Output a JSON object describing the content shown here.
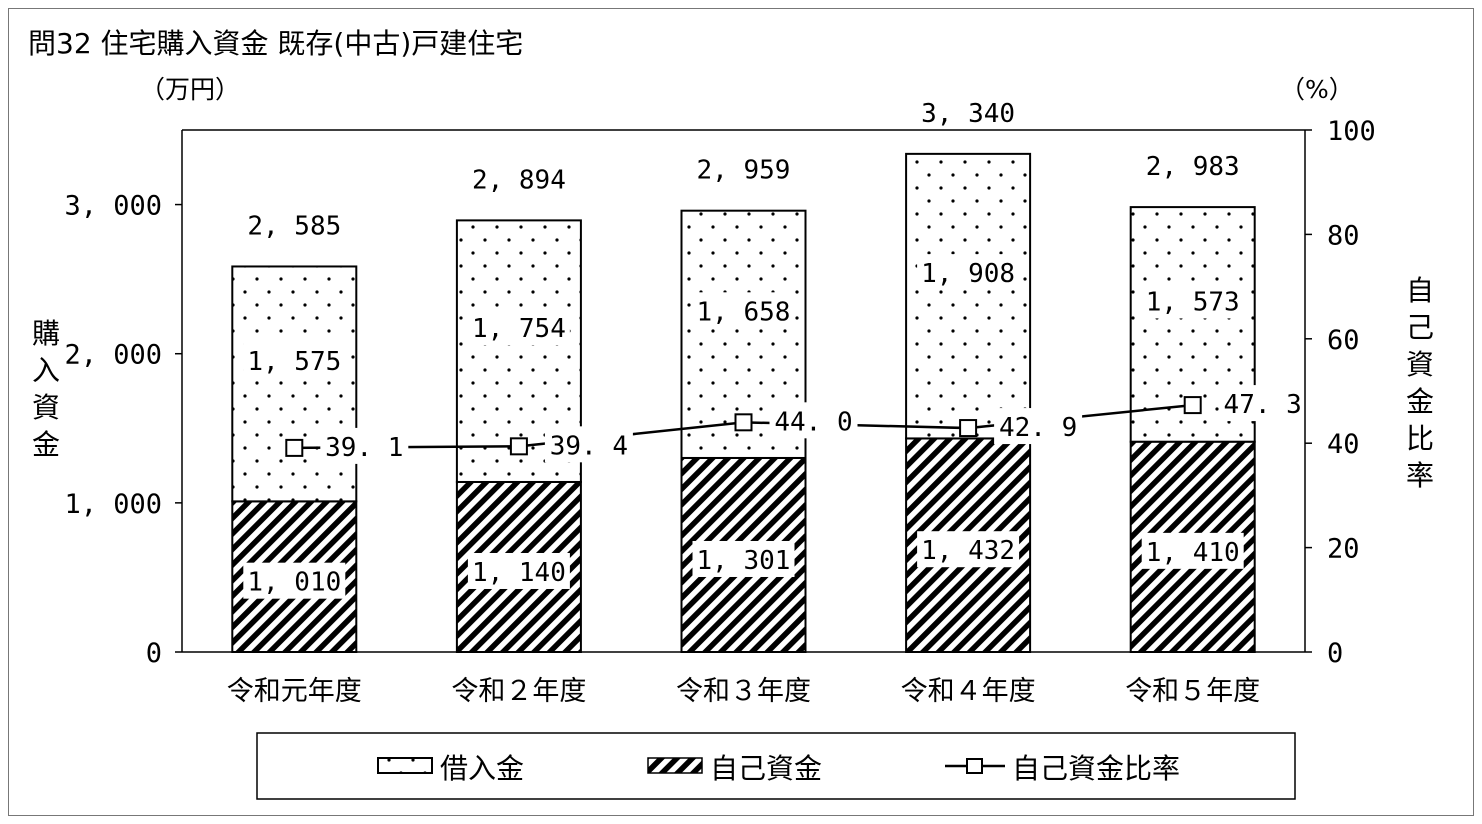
{
  "chart_data": {
    "type": "bar",
    "title": "問32 住宅購入資金 既存(中古)戸建住宅",
    "left_unit": "（万円）",
    "right_unit": "（%）",
    "left_axis_title": "購入資金",
    "right_axis_title": "自己資金比率",
    "categories": [
      "令和元年度",
      "令和２年度",
      "令和３年度",
      "令和４年度",
      "令和５年度"
    ],
    "series": [
      {
        "name": "借入金",
        "values": [
          1575,
          1754,
          1658,
          1908,
          1573
        ],
        "style": "dotted",
        "axis": "left"
      },
      {
        "name": "自己資金",
        "values": [
          1010,
          1140,
          1301,
          1432,
          1410
        ],
        "style": "hatched",
        "axis": "left"
      },
      {
        "name": "自己資金比率",
        "values": [
          39.1,
          39.4,
          44.0,
          42.9,
          47.3
        ],
        "style": "line-square-marker",
        "axis": "right"
      }
    ],
    "bar_value_labels": {
      "借入金": [
        "1, 575",
        "1, 754",
        "1, 658",
        "1, 908",
        "1, 573"
      ],
      "自己資金": [
        "1, 010",
        "1, 140",
        "1, 301",
        "1, 432",
        "1, 410"
      ]
    },
    "totals": [
      2585,
      2894,
      2959,
      3340,
      2983
    ],
    "total_labels": [
      "2, 585",
      "2, 894",
      "2, 959",
      "3, 340",
      "2, 983"
    ],
    "ratio_labels": [
      "39. 1",
      "39. 4",
      "44. 0",
      "42. 9",
      "47. 3"
    ],
    "ylim_left": [
      0,
      3500
    ],
    "yticks_left": [
      0,
      1000,
      2000,
      3000
    ],
    "ytick_labels_left": [
      "0",
      "1, 000",
      "2, 000",
      "3, 000"
    ],
    "ylim_right": [
      0,
      100
    ],
    "yticks_right": [
      0,
      20,
      40,
      60,
      80,
      100
    ],
    "ytick_labels_right": [
      "0",
      "20",
      "40",
      "60",
      "80",
      "100"
    ],
    "grid": false,
    "legend_position": "bottom-center",
    "legend_items": [
      "借入金",
      "自己資金",
      "自己資金比率"
    ],
    "colors": {
      "ink": "#000000",
      "background": "#ffffff",
      "frame": "#777777"
    }
  }
}
